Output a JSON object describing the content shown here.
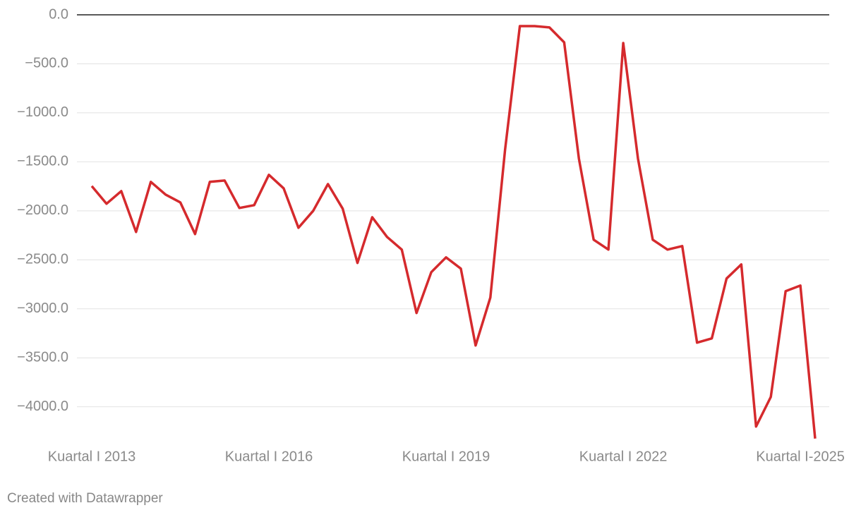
{
  "chart_data": {
    "type": "line",
    "categories": [
      "Kuartal I 2013",
      null,
      null,
      null,
      null,
      null,
      null,
      null,
      null,
      null,
      null,
      null,
      "Kuartal I 2016",
      null,
      null,
      null,
      null,
      null,
      null,
      null,
      null,
      null,
      null,
      null,
      "Kuartal I 2019",
      null,
      null,
      null,
      null,
      null,
      null,
      null,
      null,
      null,
      null,
      null,
      "Kuartal I 2022",
      null,
      null,
      null,
      null,
      null,
      null,
      null,
      null,
      null,
      null,
      null,
      "Kuartal I-2025",
      null
    ],
    "series": [
      {
        "color": "#d52a2d",
        "values": [
          -1748,
          -1928,
          -1799,
          -2216,
          -1705,
          -1834,
          -1914,
          -2237,
          -1705,
          -1691,
          -1971,
          -1942,
          -1633,
          -1770,
          -2173,
          -2000,
          -1727,
          -1978,
          -2532,
          -2065,
          -2266,
          -2396,
          -3043,
          -2626,
          -2475,
          -2590,
          -3374,
          -2885,
          -1374,
          -115,
          -115,
          -129,
          -281,
          -1468,
          -2295,
          -2396,
          -288,
          -1468,
          -2295,
          -2396,
          -2360,
          -3345,
          -3302,
          -2691,
          -2547,
          -4201,
          -3899,
          -2820,
          -2763,
          -4324
        ]
      }
    ],
    "ylim": [
      -4330,
      0
    ],
    "yticks": [
      {
        "value": 0,
        "label": "0.0"
      },
      {
        "value": -500,
        "label": "−500.0"
      },
      {
        "value": -1000,
        "label": "−1000.0"
      },
      {
        "value": -1500,
        "label": "−1500.0"
      },
      {
        "value": -2000,
        "label": "−2000.0"
      },
      {
        "value": -2500,
        "label": "−2500.0"
      },
      {
        "value": -3000,
        "label": "−3000.0"
      },
      {
        "value": -3500,
        "label": "−3500.0"
      },
      {
        "value": -4000,
        "label": "−4000.0"
      }
    ],
    "grid": true,
    "footer": "Created with Datawrapper"
  }
}
